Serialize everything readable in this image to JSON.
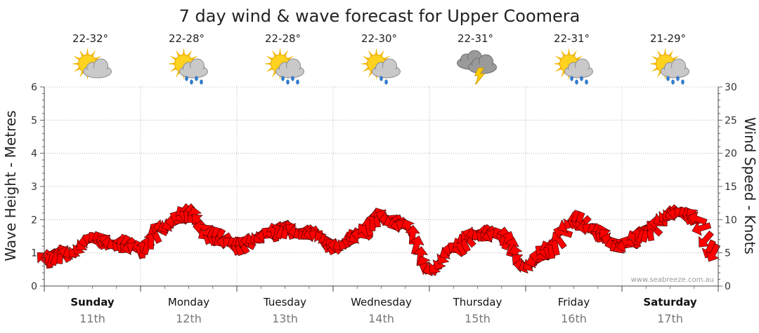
{
  "chart_data": {
    "type": "line",
    "title": "7 day wind & wave forecast for Upper Coomera",
    "ylabel_left": "Wave Height - Metres",
    "ylabel_right": "Wind Speed - Knots",
    "ylim_left": [
      0,
      6
    ],
    "ylim_right": [
      0,
      30
    ],
    "yticks_left": [
      "0",
      "1",
      "2",
      "3",
      "4",
      "5",
      "6"
    ],
    "yticks_right": [
      "0",
      "5",
      "10",
      "15",
      "20",
      "25",
      "30"
    ],
    "grid": true,
    "watermark": "www.seabreeze.com.au",
    "days": [
      {
        "name": "Sunday",
        "date": "11th",
        "temp": "22-32°",
        "icon": "sun-cloud-icon",
        "bold": true
      },
      {
        "name": "Monday",
        "date": "12th",
        "temp": "22-28°",
        "icon": "sun-cloud-rain-icon",
        "bold": false
      },
      {
        "name": "Tuesday",
        "date": "13th",
        "temp": "22-28°",
        "icon": "sun-cloud-rain-icon",
        "bold": false
      },
      {
        "name": "Wednesday",
        "date": "14th",
        "temp": "22-30°",
        "icon": "sun-cloud-drizzle-icon",
        "bold": false
      },
      {
        "name": "Thursday",
        "date": "15th",
        "temp": "22-31°",
        "icon": "storm-icon",
        "bold": false
      },
      {
        "name": "Friday",
        "date": "16th",
        "temp": "22-31°",
        "icon": "sun-cloud-rain-icon",
        "bold": false
      },
      {
        "name": "Saturday",
        "date": "17th",
        "temp": "21-29°",
        "icon": "sun-cloud-rain-icon",
        "bold": true
      }
    ],
    "wind_series": {
      "x_days": [
        0.0,
        0.25,
        0.5,
        0.75,
        1.0,
        1.25,
        1.5,
        1.75,
        2.0,
        2.25,
        2.5,
        2.75,
        3.0,
        3.25,
        3.5,
        3.75,
        4.0,
        4.25,
        4.5,
        4.75,
        5.0,
        5.25,
        5.5,
        5.75,
        6.0,
        6.25,
        6.5,
        6.75,
        6.95
      ],
      "knots": [
        4,
        5,
        7,
        6.5,
        5.5,
        9,
        11,
        7.5,
        6,
        7.5,
        8.5,
        8,
        6,
        7.5,
        10.5,
        9,
        2.5,
        5.5,
        8,
        7.5,
        3,
        5.5,
        10,
        8,
        6,
        8,
        11,
        10.5,
        5
      ],
      "color": "#ff0000"
    }
  }
}
